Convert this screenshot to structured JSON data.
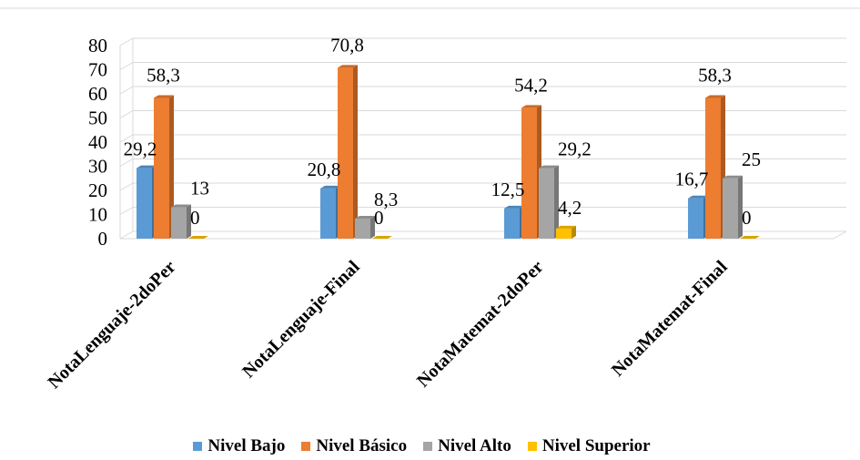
{
  "chart_data": {
    "type": "bar",
    "categories": [
      "NotaLenguaje-2doPer",
      "NotaLenguaje-Final",
      "NotaMatemat-2doPer",
      "NotaMatemat-Final"
    ],
    "series": [
      {
        "name": "Nivel Bajo",
        "values": [
          29.2,
          20.8,
          12.5,
          16.7
        ],
        "labels": [
          "29,2",
          "20,8",
          "12,5",
          "16,7"
        ],
        "color": "#5B9BD5"
      },
      {
        "name": "Nivel Básico",
        "values": [
          58.3,
          70.8,
          54.2,
          58.3
        ],
        "labels": [
          "58,3",
          "70,8",
          "54,2",
          "58,3"
        ],
        "color": "#ED7D31"
      },
      {
        "name": "Nivel Alto",
        "values": [
          13,
          8.3,
          29.2,
          25
        ],
        "labels": [
          "13",
          "8,3",
          "29,2",
          "25"
        ],
        "color": "#A5A5A5"
      },
      {
        "name": "Nivel Superior",
        "values": [
          0,
          0,
          4.2,
          0
        ],
        "labels": [
          "0",
          "0",
          "4,2",
          "0"
        ],
        "color": "#FFC000"
      }
    ],
    "y_ticks": [
      "0",
      "10",
      "20",
      "30",
      "40",
      "50",
      "60",
      "70",
      "80"
    ],
    "ylim": [
      0,
      80
    ],
    "grid": true,
    "three_d": true,
    "legend_position": "bottom"
  }
}
